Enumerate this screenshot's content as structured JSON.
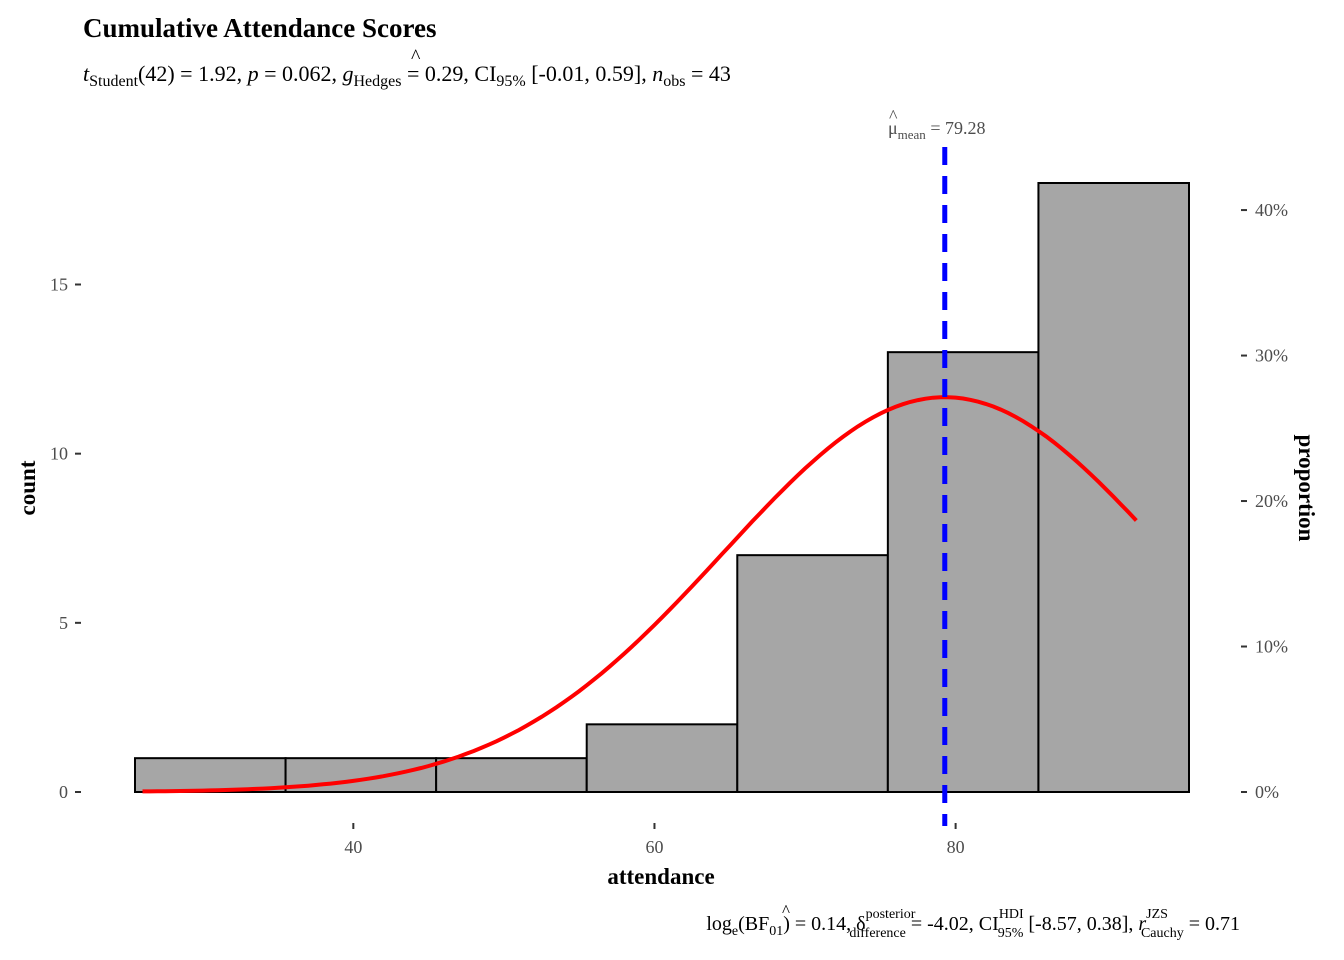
{
  "chart_data": {
    "type": "bar",
    "title": "Cumulative Attendance Scores",
    "subtitle": {
      "t_sym": "t",
      "t_sub": "Student",
      "t_val": "(42) = 1.92, ",
      "p_sym": "p",
      "p_val": " = 0.062, ",
      "g_hat": "^",
      "g_sym": "g",
      "g_sub": "Hedges",
      "g_val": " = 0.29, CI",
      "ci_sub": "95%",
      "ci_val": " [-0.01, 0.59], ",
      "n_sym": "n",
      "n_sub": "obs",
      "n_val": " = 43"
    },
    "caption": {
      "log_pre": "log",
      "log_sub": "e",
      "bf_pre": "(BF",
      "bf_sub": "01",
      "bf_val": ") = 0.14, ",
      "d_hat": "^",
      "d_sym": "δ",
      "d_sup": "posterior",
      "d_sub": "difference",
      "d_val": " = -4.02, CI",
      "ci_sup": "HDI",
      "ci_sub": "95%",
      "ci_val": " [-8.57, 0.38], ",
      "r_sym": "r",
      "r_sup": "JZS",
      "r_sub": "Cauchy",
      "r_val": " = 0.71"
    },
    "xlabel": "attendance",
    "ylabel": "count",
    "y2label": "proportion",
    "xlim": [
      24.5,
      96.5
    ],
    "ylim": [
      0,
      18
    ],
    "xticks": [
      "40",
      "60",
      "80"
    ],
    "xtick_values": [
      40,
      60,
      80
    ],
    "yticks": [
      "0",
      "5",
      "10",
      "15"
    ],
    "ytick_values": [
      0,
      5,
      10,
      15
    ],
    "y2ticks": [
      "0%",
      "10%",
      "20%",
      "30%",
      "40%"
    ],
    "y2tick_values": [
      0,
      0.1,
      0.2,
      0.3,
      0.4
    ],
    "bins": [
      {
        "x0": 25.5,
        "x1": 35.5,
        "count": 1
      },
      {
        "x0": 35.5,
        "x1": 45.5,
        "count": 1
      },
      {
        "x0": 45.5,
        "x1": 55.5,
        "count": 1
      },
      {
        "x0": 55.5,
        "x1": 65.5,
        "count": 2
      },
      {
        "x0": 65.5,
        "x1": 75.5,
        "count": 7
      },
      {
        "x0": 75.5,
        "x1": 85.5,
        "count": 13
      },
      {
        "x0": 85.5,
        "x1": 95.5,
        "count": 18
      }
    ],
    "normal_curve": {
      "mean": 79.28,
      "sd": 14.7,
      "n": 43,
      "binwidth": 10,
      "from": 26,
      "to": 92
    },
    "mean_line": {
      "value": 79.28,
      "label_sym": "μ",
      "label_hat": "^",
      "label_sub": "mean",
      "label_val": " = 79.28"
    },
    "grid": false,
    "colors": {
      "bar_fill": "#a6a6a6",
      "bar_stroke": "#000000",
      "curve": "#ff0000",
      "mean_line": "#0000ff",
      "tick_text": "#4d4d4d"
    }
  }
}
